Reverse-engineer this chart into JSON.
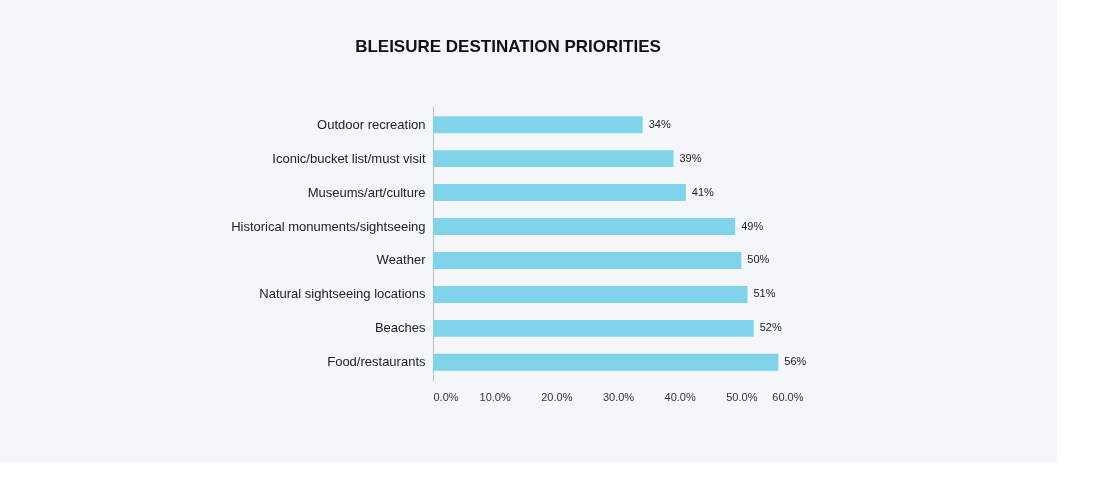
{
  "chart_data": {
    "type": "bar",
    "orientation": "horizontal",
    "title": "BLEISURE DESTINATION PRIORITIES",
    "categories": [
      "Outdoor recreation",
      "Iconic/bucket list/must visit",
      "Museums/art/culture",
      "Historical monuments/sightseeing",
      "Weather",
      "Natural sightseeing locations",
      "Beaches",
      "Food/restaurants"
    ],
    "values": [
      34,
      39,
      41,
      49,
      50,
      51,
      52,
      56
    ],
    "value_labels": [
      "34%",
      "39%",
      "41%",
      "49%",
      "50%",
      "51%",
      "52%",
      "56%"
    ],
    "color": "#7fd3ea",
    "xlim": [
      0,
      60
    ],
    "xticks": [
      {
        "value": 0,
        "label": "0.0%"
      },
      {
        "value": 10,
        "label": "10.0%"
      },
      {
        "value": 20,
        "label": "20.0%"
      },
      {
        "value": 30,
        "label": "30.0%"
      },
      {
        "value": 40,
        "label": "40.0%"
      },
      {
        "value": 50,
        "label": "50.0%"
      },
      {
        "value": 60,
        "label": "60.0%"
      }
    ],
    "grid": false
  }
}
